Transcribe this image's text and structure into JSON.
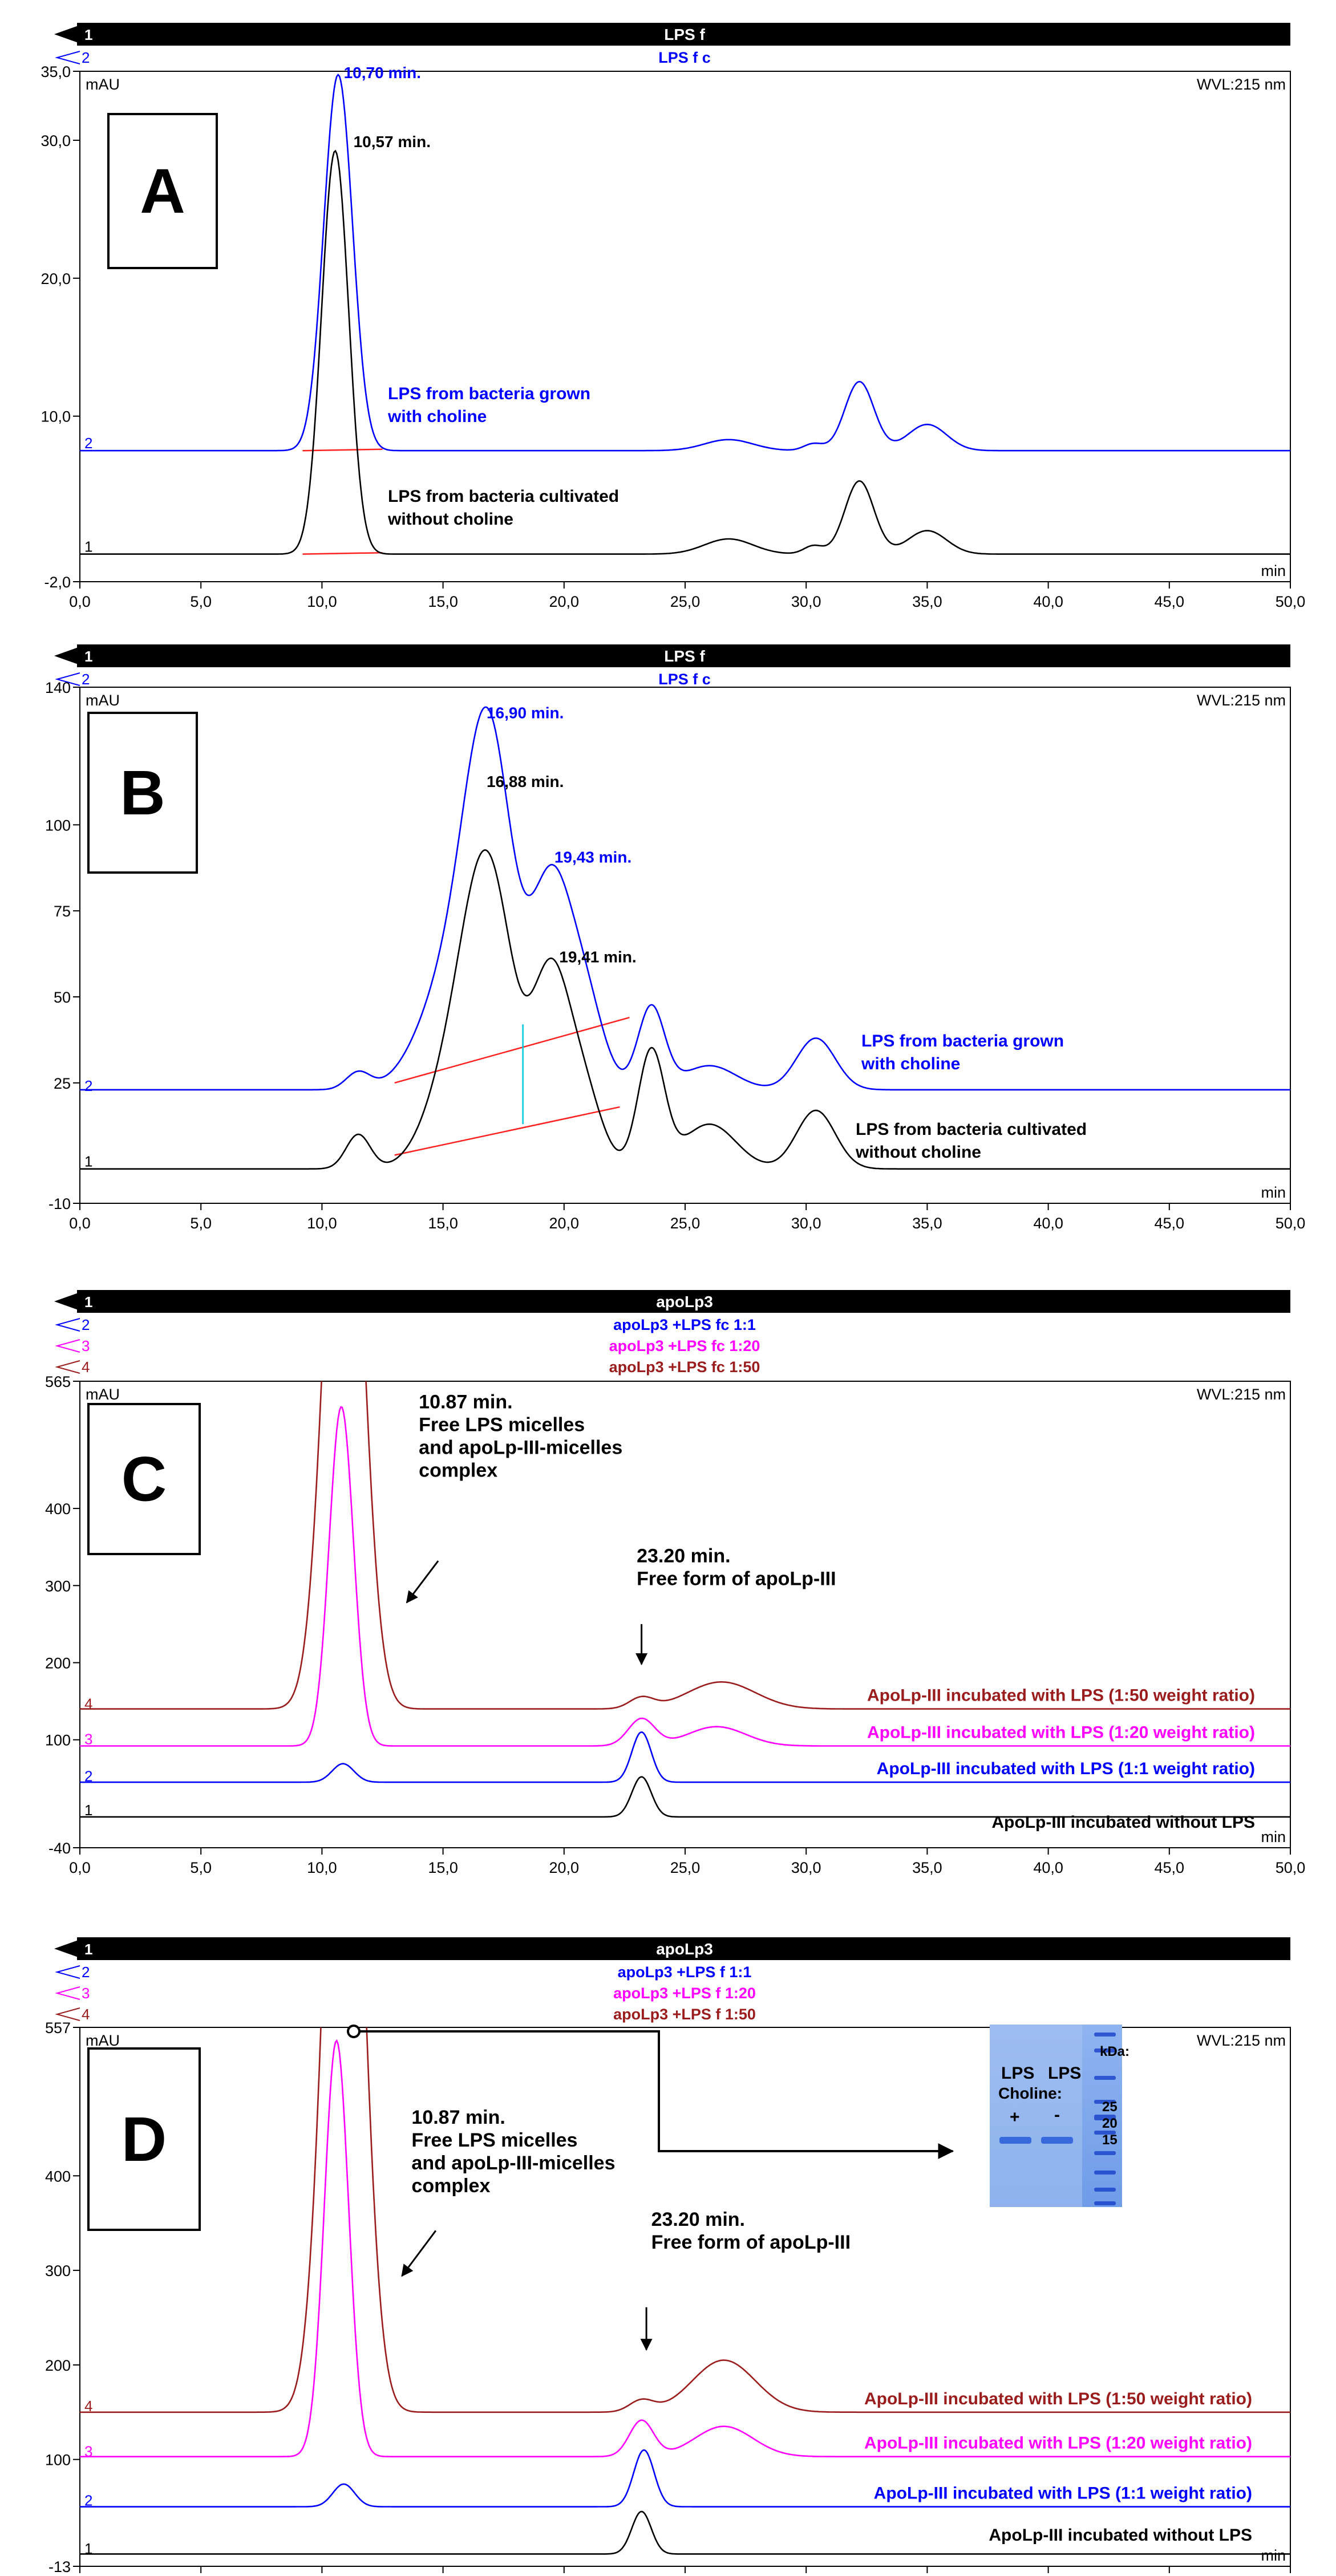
{
  "panels": [
    {
      "letter": "A",
      "header": {
        "num": "1",
        "title": "LPS f"
      },
      "subtitles": [
        {
          "num": "2",
          "text": "LPS f c",
          "color": "#0000ff"
        }
      ],
      "yunit": "mAU",
      "wvl": "WVL:215 nm",
      "xunit": "min",
      "chart_data": {
        "type": "line",
        "xlim": [
          0,
          50
        ],
        "ylim": [
          -2,
          35
        ],
        "x_ticks": [
          "0,0",
          "5,0",
          "10,0",
          "15,0",
          "20,0",
          "25,0",
          "30,0",
          "35,0",
          "40,0",
          "45,0",
          "50,0"
        ],
        "y_ticks": [
          {
            "value": 35,
            "label": "35,0"
          },
          {
            "value": 30,
            "label": "30,0"
          },
          {
            "value": 20,
            "label": "20,0"
          },
          {
            "value": 10,
            "label": "10,0"
          },
          {
            "value": -2,
            "label": "-2,0"
          }
        ],
        "series": [
          {
            "num": "1",
            "color": "#000000",
            "baseline": 0,
            "label_value": 0.5,
            "peaks": [
              [
                10.57,
                27.8,
                0.55
              ],
              [
                10.15,
                2.0,
                0.5
              ],
              [
                26.8,
                1.1,
                1.0
              ],
              [
                30.3,
                0.6,
                0.4
              ],
              [
                32.2,
                5.3,
                0.6
              ],
              [
                35.0,
                1.7,
                0.8
              ]
            ],
            "description": "LPS from bacteria cultivated without choline"
          },
          {
            "num": "2",
            "color": "#0000ff",
            "baseline": 7.5,
            "label_value": 8.0,
            "peaks": [
              [
                10.7,
                26.0,
                0.58
              ],
              [
                10.2,
                2.0,
                0.5
              ],
              [
                26.8,
                0.8,
                1.0
              ],
              [
                30.3,
                0.5,
                0.4
              ],
              [
                32.2,
                5.0,
                0.6
              ],
              [
                35.0,
                1.9,
                0.8
              ]
            ],
            "description": "LPS from bacteria grown with choline"
          }
        ],
        "annotations": [
          {
            "text": "10,70 min.",
            "color": "#0000ff",
            "x": 10.9,
            "y": 34.5
          },
          {
            "text": "10,57 min.",
            "color": "#000000",
            "x": 11.3,
            "y": 29.5
          }
        ],
        "integration_lines": [
          {
            "x1": 9.2,
            "y1": 7.5,
            "x2": 12.5,
            "y2": 7.6
          },
          {
            "x1": 9.2,
            "y1": 0.0,
            "x2": 12.5,
            "y2": 0.1
          }
        ],
        "vlines": []
      }
    },
    {
      "letter": "B",
      "header": {
        "num": "1",
        "title": "LPS f"
      },
      "subtitles": [
        {
          "num": "2",
          "text": "LPS f c",
          "color": "#0000ff"
        }
      ],
      "yunit": "mAU",
      "wvl": "WVL:215 nm",
      "xunit": "min",
      "chart_data": {
        "type": "line",
        "xlim": [
          0,
          50
        ],
        "ylim": [
          -10,
          140
        ],
        "x_ticks": [
          "0,0",
          "5,0",
          "10,0",
          "15,0",
          "20,0",
          "25,0",
          "30,0",
          "35,0",
          "40,0",
          "45,0",
          "50,0"
        ],
        "y_ticks": [
          {
            "value": 140,
            "label": "140"
          },
          {
            "value": 100,
            "label": "100"
          },
          {
            "value": 75,
            "label": "75"
          },
          {
            "value": 50,
            "label": "50"
          },
          {
            "value": 25,
            "label": "25"
          },
          {
            "value": -10,
            "label": "-10"
          }
        ],
        "series": [
          {
            "num": "1",
            "color": "#000000",
            "baseline": 0,
            "label_value": 2,
            "peaks": [
              [
                11.5,
                10,
                0.5
              ],
              [
                15.3,
                22,
                1.1
              ],
              [
                16.88,
                84,
                1.05
              ],
              [
                19.41,
                50,
                0.75
              ],
              [
                20.7,
                24,
                0.8
              ],
              [
                23.6,
                34,
                0.55
              ],
              [
                26.0,
                13,
                1.1
              ],
              [
                30.4,
                17,
                0.8
              ]
            ],
            "description": "LPS from bacteria cultivated without choline"
          },
          {
            "num": "2",
            "color": "#0000ff",
            "baseline": 23,
            "label_value": 24,
            "peaks": [
              [
                11.5,
                5,
                0.5
              ],
              [
                15.3,
                30,
                1.3
              ],
              [
                16.9,
                96,
                1.0
              ],
              [
                19.43,
                55,
                0.8
              ],
              [
                20.8,
                27,
                0.8
              ],
              [
                23.6,
                24,
                0.55
              ],
              [
                26.0,
                7,
                1.1
              ],
              [
                30.4,
                15,
                0.8
              ]
            ],
            "description": "LPS from bacteria grown with choline"
          }
        ],
        "annotations": [
          {
            "text": "16,90 min.",
            "color": "#0000ff",
            "x": 16.8,
            "y": 131
          },
          {
            "text": "16,88 min.",
            "color": "#000000",
            "x": 16.8,
            "y": 111
          },
          {
            "text": "19,43 min.",
            "color": "#0000ff",
            "x": 19.6,
            "y": 89
          },
          {
            "text": "19,41 min.",
            "color": "#000000",
            "x": 19.8,
            "y": 60
          }
        ],
        "integration_lines": [
          {
            "x1": 13.0,
            "y1": 25,
            "x2": 22.7,
            "y2": 44
          },
          {
            "x1": 13.0,
            "y1": 4,
            "x2": 22.3,
            "y2": 18
          }
        ],
        "vlines": [
          {
            "x": 18.3,
            "y1": 13,
            "y2": 42
          }
        ]
      }
    },
    {
      "letter": "C",
      "header": {
        "num": "1",
        "title": "apoLp3"
      },
      "subtitles": [
        {
          "num": "2",
          "text": "apoLp3 +LPS fc 1:1",
          "color": "#0000ff"
        },
        {
          "num": "3",
          "text": "apoLp3 +LPS fc 1:20",
          "color": "#ff00ff"
        },
        {
          "num": "4",
          "text": "apoLp3 +LPS fc 1:50",
          "color": "#9b1c1c"
        }
      ],
      "yunit": "mAU",
      "wvl": "WVL:215 nm",
      "xunit": "min",
      "chart_data": {
        "type": "line",
        "xlim": [
          0,
          50
        ],
        "ylim": [
          -40,
          565
        ],
        "x_ticks": [
          "0,0",
          "5,0",
          "10,0",
          "15,0",
          "20,0",
          "25,0",
          "30,0",
          "35,0",
          "40,0",
          "45,0",
          "50,0"
        ],
        "y_ticks": [
          {
            "value": 565,
            "label": "565"
          },
          {
            "value": 400,
            "label": "400"
          },
          {
            "value": 300,
            "label": "300"
          },
          {
            "value": 200,
            "label": "200"
          },
          {
            "value": 100,
            "label": "100"
          },
          {
            "value": -40,
            "label": "-40"
          }
        ],
        "series": [
          {
            "num": "1",
            "color": "#000000",
            "baseline": 0,
            "label_value": 8,
            "peaks": [
              [
                23.2,
                52,
                0.4
              ]
            ],
            "description": "ApoLp-III incubated without LPS"
          },
          {
            "num": "2",
            "color": "#0000ff",
            "baseline": 45,
            "label_value": 52,
            "peaks": [
              [
                10.87,
                24,
                0.45
              ],
              [
                23.2,
                65,
                0.4
              ]
            ],
            "description": "ApoLp-III incubated with LPS (1:1 weight ratio)"
          },
          {
            "num": "3",
            "color": "#ff00ff",
            "baseline": 92,
            "label_value": 100,
            "peaks": [
              [
                10.8,
                440,
                0.5
              ],
              [
                23.2,
                35,
                0.55
              ],
              [
                26.3,
                25,
                1.2
              ]
            ],
            "description": "ApoLp-III incubated with LPS (1:20 weight ratio)"
          },
          {
            "num": "4",
            "color": "#9b1c1c",
            "baseline": 140,
            "label_value": 146,
            "peaks": [
              [
                10.9,
                900,
                0.75
              ],
              [
                23.2,
                14,
                0.5
              ],
              [
                26.5,
                35,
                1.4
              ]
            ],
            "description": "ApoLp-III incubated with LPS (1:50 weight ratio)"
          }
        ],
        "annotations": [],
        "notes": [
          {
            "lines": [
              "10.87 min.",
              "Free LPS micelles",
              "and  apoLp-III-micelles",
              "complex"
            ],
            "x": 14.0,
            "y": 530
          },
          {
            "lines": [
              "23.20 min.",
              "Free form of apoLp-III"
            ],
            "x": 23.0,
            "y": 330
          }
        ],
        "arrows": [
          {
            "x1": 14.8,
            "y1": 332,
            "x2": 13.5,
            "y2": 278
          },
          {
            "x1": 23.2,
            "y1": 250,
            "x2": 23.2,
            "y2": 198
          }
        ],
        "integration_lines": [],
        "vlines": []
      }
    },
    {
      "letter": "D",
      "header": {
        "num": "1",
        "title": "apoLp3"
      },
      "subtitles": [
        {
          "num": "2",
          "text": "apoLp3 +LPS f 1:1",
          "color": "#0000ff"
        },
        {
          "num": "3",
          "text": "apoLp3 +LPS f 1:20",
          "color": "#ff00ff"
        },
        {
          "num": "4",
          "text": "apoLp3 +LPS f 1:50",
          "color": "#9b1c1c"
        }
      ],
      "yunit": "mAU",
      "wvl": "WVL:215 nm",
      "xunit": "min",
      "chart_data": {
        "type": "line",
        "xlim": [
          0,
          50
        ],
        "ylim": [
          -13,
          557
        ],
        "x_ticks": [
          "0,0",
          "5,0",
          "10,0",
          "15,0",
          "20,0",
          "25,0",
          "30,0",
          "35,0",
          "40,0",
          "45,0",
          "50,0"
        ],
        "y_ticks": [
          {
            "value": 557,
            "label": "557"
          },
          {
            "value": 400,
            "label": "400"
          },
          {
            "value": 300,
            "label": "300"
          },
          {
            "value": 200,
            "label": "200"
          },
          {
            "value": 100,
            "label": "100"
          },
          {
            "value": -13,
            "label": "-13"
          }
        ],
        "series": [
          {
            "num": "1",
            "color": "#000000",
            "baseline": 0,
            "label_value": 5,
            "peaks": [
              [
                23.2,
                45,
                0.4
              ]
            ],
            "description": "ApoLp-III incubated without LPS"
          },
          {
            "num": "2",
            "color": "#0000ff",
            "baseline": 50,
            "label_value": 56,
            "peaks": [
              [
                10.9,
                24,
                0.45
              ],
              [
                23.3,
                60,
                0.42
              ]
            ],
            "description": "ApoLp-III incubated with LPS (1:1 weight ratio)"
          },
          {
            "num": "3",
            "color": "#ff00ff",
            "baseline": 103,
            "label_value": 108,
            "peaks": [
              [
                10.6,
                440,
                0.5
              ],
              [
                23.2,
                38,
                0.5
              ],
              [
                26.6,
                32,
                1.2
              ]
            ],
            "description": "ApoLp-III incubated with LPS (1:20 weight ratio)"
          },
          {
            "num": "4",
            "color": "#9b1c1c",
            "baseline": 150,
            "label_value": 156,
            "peaks": [
              [
                10.9,
                900,
                0.75
              ],
              [
                23.2,
                12,
                0.5
              ],
              [
                26.6,
                55,
                1.3
              ]
            ],
            "description": "ApoLp-III incubated with LPS (1:50 weight ratio)"
          }
        ],
        "annotations": [],
        "notes": [
          {
            "lines": [
              "10.87 min.",
              "Free LPS micelles",
              "and  apoLp-III-micelles",
              "complex"
            ],
            "x": 13.7,
            "y": 455
          },
          {
            "lines": [
              "23.20 min.",
              "Free form of apoLp-III"
            ],
            "x": 23.6,
            "y": 347
          }
        ],
        "arrows": [
          {
            "x1": 14.7,
            "y1": 342,
            "x2": 13.3,
            "y2": 294
          },
          {
            "x1": 23.4,
            "y1": 261,
            "x2": 23.4,
            "y2": 216
          }
        ],
        "integration_lines": [],
        "vlines": [],
        "gel_inset": {
          "header": [
            "LPS",
            "LPS"
          ],
          "choline_label": "Choline:",
          "signs": [
            "+",
            "-"
          ],
          "kda_label": "kDa:",
          "markers": [
            "25",
            "20",
            "15"
          ]
        }
      }
    }
  ]
}
